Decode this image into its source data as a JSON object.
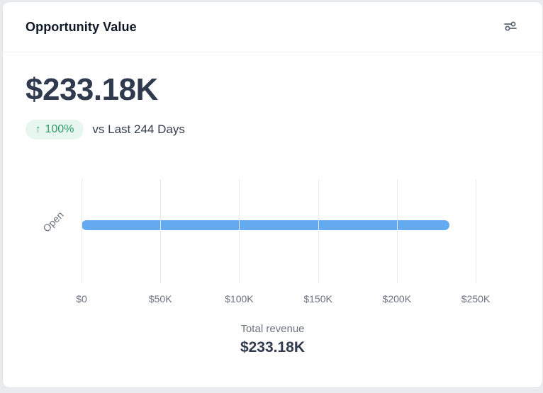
{
  "page": {
    "background": "#eaebef",
    "card_background": "#ffffff",
    "card_border": "#e3e5ea"
  },
  "header": {
    "title": "Opportunity Value",
    "settings_icon": "sliders-icon",
    "icon_color": "#5b6472"
  },
  "summary": {
    "value": "$233.18K",
    "badge": {
      "arrow": "↑",
      "percent": "100%",
      "text_color": "#2f9e6a",
      "background": "#e7f6ee"
    },
    "comparison": "vs Last 244 Days"
  },
  "chart_data": {
    "type": "bar",
    "orientation": "horizontal",
    "title": "Opportunity Value",
    "categories": [
      "Open"
    ],
    "values": [
      233180
    ],
    "value_labels": [
      "$233.18K"
    ],
    "xlim": [
      0,
      250000
    ],
    "x_ticks": [
      0,
      50000,
      100000,
      150000,
      200000,
      250000
    ],
    "x_tick_labels": [
      "$0",
      "$50K",
      "$100K",
      "$150K",
      "$200K",
      "$250K"
    ],
    "bar_color": "#63aaf1",
    "grid_color": "#e7e9ec",
    "grid": "vertical-only",
    "legend": "none",
    "footer": {
      "label": "Total revenue",
      "value": "$233.18K"
    }
  }
}
